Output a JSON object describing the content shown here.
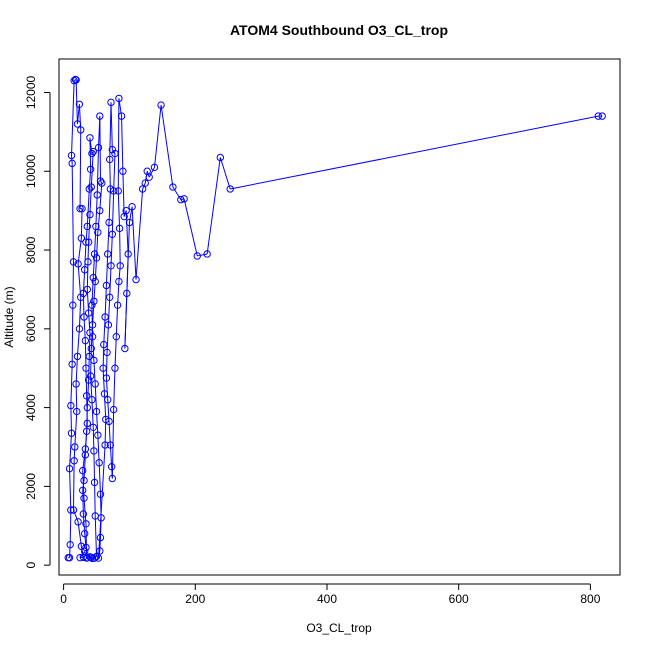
{
  "chart_data": {
    "type": "scatter",
    "title": "ATOM4 Southbound O3_CL_trop",
    "xlabel": "O3_CL_trop",
    "ylabel": "Altitude (m)",
    "xlim": [
      -7,
      845
    ],
    "ylim": [
      -250,
      12850
    ],
    "x_ticks": [
      0,
      200,
      400,
      600,
      800
    ],
    "y_ticks": [
      0,
      2000,
      4000,
      6000,
      8000,
      10000,
      12000
    ],
    "x_tick_labels": [
      "0",
      "200",
      "400",
      "600",
      "800"
    ],
    "y_tick_labels": [
      "0",
      "2000",
      "4000",
      "6000",
      "8000",
      "10000",
      "12000"
    ],
    "grid": false,
    "legend": "none",
    "style": {
      "series_color": "#0000ff",
      "marker": "open-circle",
      "connected": true
    },
    "series": [
      {
        "points": [
          [
            7,
            190
          ],
          [
            9,
            190
          ],
          [
            10,
            520
          ],
          [
            11,
            1400
          ],
          [
            9,
            2450
          ],
          [
            12,
            3350
          ],
          [
            11,
            4050
          ],
          [
            13,
            5100
          ],
          [
            14,
            6600
          ],
          [
            15,
            7700
          ],
          [
            13,
            10200
          ],
          [
            12,
            10400
          ],
          [
            16,
            12300
          ],
          [
            18,
            12330
          ],
          [
            19,
            12320
          ],
          [
            21,
            11200
          ],
          [
            24,
            11700
          ],
          [
            26,
            11050
          ],
          [
            25,
            9050
          ],
          [
            28,
            9050
          ],
          [
            27,
            8300
          ],
          [
            22,
            7650
          ],
          [
            26,
            6800
          ],
          [
            24,
            6000
          ],
          [
            21,
            5300
          ],
          [
            19,
            4600
          ],
          [
            20,
            3900
          ],
          [
            17,
            3000
          ],
          [
            16,
            2650
          ],
          [
            15,
            1400
          ],
          [
            22,
            1100
          ],
          [
            27,
            480
          ],
          [
            30,
            200
          ],
          [
            25,
            190
          ],
          [
            32,
            350
          ],
          [
            35,
            180
          ],
          [
            34,
            1050
          ],
          [
            31,
            1700
          ],
          [
            29,
            2400
          ],
          [
            33,
            2950
          ],
          [
            36,
            3600
          ],
          [
            35,
            4300
          ],
          [
            34,
            5000
          ],
          [
            33,
            5700
          ],
          [
            31,
            6300
          ],
          [
            30,
            6900
          ],
          [
            32,
            7500
          ],
          [
            34,
            8200
          ],
          [
            36,
            8600
          ],
          [
            39,
            9550
          ],
          [
            41,
            10050
          ],
          [
            40,
            10850
          ],
          [
            43,
            10450
          ],
          [
            45,
            10500
          ],
          [
            42,
            9600
          ],
          [
            40,
            8900
          ],
          [
            38,
            8200
          ],
          [
            37,
            7700
          ],
          [
            36,
            7000
          ],
          [
            38,
            6400
          ],
          [
            40,
            5900
          ],
          [
            39,
            5300
          ],
          [
            38,
            4700
          ],
          [
            36,
            4000
          ],
          [
            35,
            3400
          ],
          [
            33,
            2800
          ],
          [
            31,
            2150
          ],
          [
            29,
            1900
          ],
          [
            30,
            1300
          ],
          [
            32,
            800
          ],
          [
            34,
            450
          ],
          [
            36,
            190
          ],
          [
            40,
            210
          ],
          [
            42,
            200
          ],
          [
            44,
            170
          ],
          [
            47,
            180
          ],
          [
            50,
            220
          ],
          [
            48,
            1250
          ],
          [
            47,
            2100
          ],
          [
            46,
            2900
          ],
          [
            45,
            3500
          ],
          [
            43,
            4200
          ],
          [
            41,
            4800
          ],
          [
            42,
            5500
          ],
          [
            44,
            6100
          ],
          [
            46,
            6700
          ],
          [
            48,
            7200
          ],
          [
            50,
            7800
          ],
          [
            52,
            8450
          ],
          [
            55,
            9000
          ],
          [
            58,
            9700
          ],
          [
            56,
            9750
          ],
          [
            55,
            11400
          ],
          [
            53,
            10600
          ],
          [
            51,
            9400
          ],
          [
            49,
            8600
          ],
          [
            47,
            7900
          ],
          [
            45,
            7300
          ],
          [
            43,
            6600
          ],
          [
            44,
            5800
          ],
          [
            46,
            5200
          ],
          [
            48,
            4600
          ],
          [
            50,
            3900
          ],
          [
            52,
            3300
          ],
          [
            54,
            2600
          ],
          [
            56,
            1800
          ],
          [
            57,
            1200
          ],
          [
            56,
            700
          ],
          [
            55,
            360
          ],
          [
            53,
            180
          ],
          [
            63,
            3050
          ],
          [
            64,
            3700
          ],
          [
            62,
            4350
          ],
          [
            60,
            5000
          ],
          [
            61,
            5600
          ],
          [
            63,
            6300
          ],
          [
            65,
            7100
          ],
          [
            67,
            7900
          ],
          [
            69,
            8700
          ],
          [
            71,
            9550
          ],
          [
            70,
            10300
          ],
          [
            72,
            11750
          ],
          [
            74,
            10550
          ],
          [
            78,
            10450
          ],
          [
            76,
            9500
          ],
          [
            74,
            8400
          ],
          [
            72,
            7600
          ],
          [
            70,
            6800
          ],
          [
            68,
            6100
          ],
          [
            66,
            5400
          ],
          [
            65,
            4750
          ],
          [
            67,
            4200
          ],
          [
            69,
            3650
          ],
          [
            71,
            3050
          ],
          [
            73,
            2500
          ],
          [
            74,
            2200
          ],
          [
            76,
            3950
          ],
          [
            78,
            5000
          ],
          [
            80,
            5800
          ],
          [
            82,
            6600
          ],
          [
            84,
            7200
          ],
          [
            86,
            7600
          ],
          [
            85,
            8550
          ],
          [
            83,
            9500
          ],
          [
            84,
            11850
          ],
          [
            88,
            11400
          ],
          [
            90,
            10000
          ],
          [
            92,
            8850
          ],
          [
            95,
            9000
          ],
          [
            98,
            7900
          ],
          [
            96,
            6900
          ],
          [
            93,
            5500
          ],
          [
            100,
            8700
          ],
          [
            104,
            9100
          ],
          [
            110,
            7250
          ],
          [
            120,
            9550
          ],
          [
            124,
            9700
          ],
          [
            127,
            10000
          ],
          [
            130,
            9850
          ],
          [
            138,
            10100
          ],
          [
            148,
            11680
          ],
          [
            166,
            9600
          ],
          [
            178,
            9280
          ],
          [
            183,
            9300
          ],
          [
            203,
            7850
          ],
          [
            218,
            7900
          ],
          [
            238,
            10350
          ],
          [
            253,
            9550
          ],
          [
            812,
            11400
          ],
          [
            818,
            11400
          ]
        ]
      }
    ]
  }
}
